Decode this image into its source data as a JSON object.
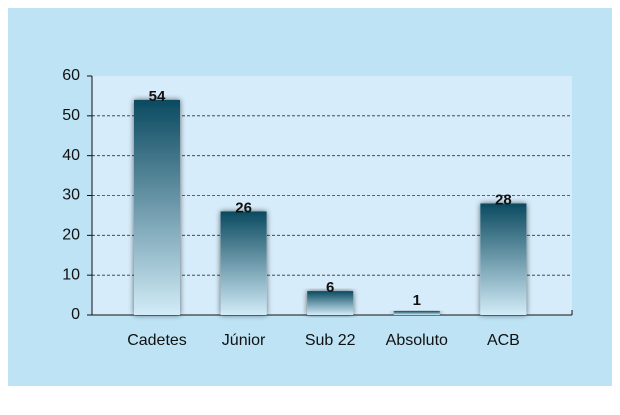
{
  "chart_data": {
    "type": "bar",
    "categories": [
      "Cadetes",
      "Júnior",
      "Sub 22",
      "Absoluto",
      "ACB"
    ],
    "values": [
      54,
      26,
      6,
      1,
      28
    ],
    "color": "#0b4a60",
    "ylim": [
      0,
      60
    ],
    "yticks": [
      0,
      10,
      20,
      30,
      40,
      50,
      60
    ],
    "grid": true
  }
}
